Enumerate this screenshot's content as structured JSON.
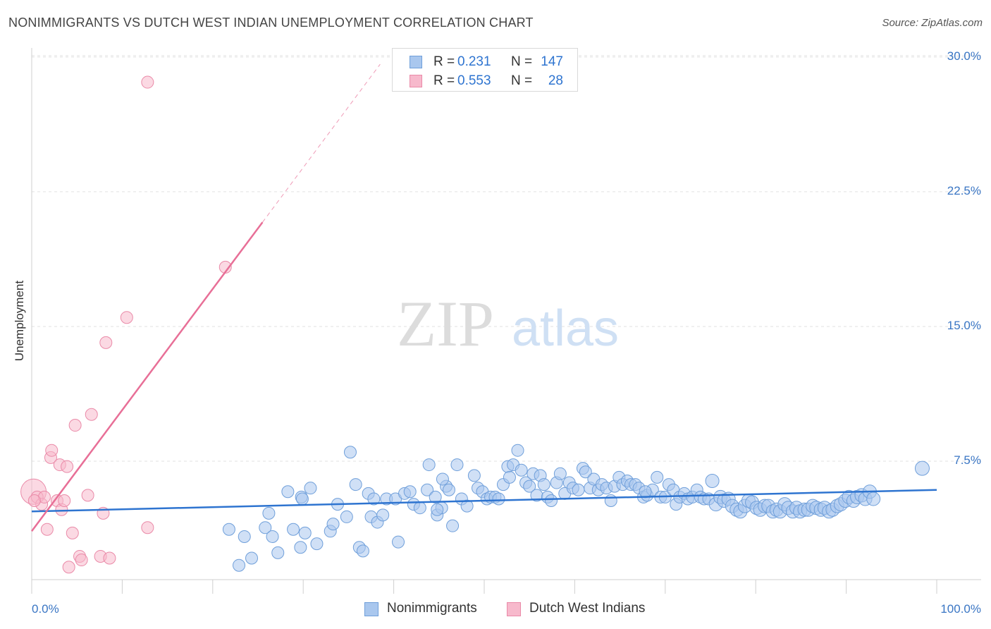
{
  "header": {
    "title": "NONIMMIGRANTS VS DUTCH WEST INDIAN UNEMPLOYMENT CORRELATION CHART",
    "source": "Source: ZipAtlas.com"
  },
  "watermark": {
    "zip": "ZIP",
    "atlas": "atlas"
  },
  "legend_top": [
    {
      "r_label": "R =",
      "r_value": "0.231",
      "n_label": "N =",
      "n_value": "147"
    },
    {
      "r_label": "R =",
      "r_value": "0.553",
      "n_label": "N =",
      "n_value": "28"
    }
  ],
  "legend_bottom": [
    {
      "label": "Nonimmigrants"
    },
    {
      "label": "Dutch West Indians"
    }
  ],
  "colors": {
    "blue_fill": "#a9c7ee",
    "blue_stroke": "#6f9fda",
    "blue_line": "#2e74d0",
    "pink_fill": "#f7b9cc",
    "pink_stroke": "#ea8aa8",
    "pink_line": "#e86f97",
    "axis_text": "#3a76c4",
    "grid": "#e2e2e2"
  },
  "chart_data": {
    "type": "scatter",
    "title": "NONIMMIGRANTS VS DUTCH WEST INDIAN UNEMPLOYMENT CORRELATION CHART",
    "xlabel": "",
    "ylabel": "Unemployment",
    "xlim": [
      0,
      100
    ],
    "ylim": [
      0,
      31
    ],
    "x_tick_labels": [
      "0.0%",
      "100.0%"
    ],
    "y_ticks": [
      7.5,
      15.0,
      22.5,
      30.0
    ],
    "y_tick_labels": [
      "7.5%",
      "15.0%",
      "22.5%",
      "30.0%"
    ],
    "grid": true,
    "legend": "top-center",
    "series": [
      {
        "name": "Nonimmigrants",
        "r": 0.231,
        "n": 147,
        "trend": {
          "x": [
            0,
            100
          ],
          "y": [
            4.7,
            5.9
          ],
          "dashed_extension": false
        },
        "points": [
          [
            21.8,
            3.7
          ],
          [
            22.9,
            1.7
          ],
          [
            23.5,
            3.3
          ],
          [
            24.3,
            2.1
          ],
          [
            25.8,
            3.8
          ],
          [
            26.2,
            4.6
          ],
          [
            26.6,
            3.3
          ],
          [
            27.2,
            2.4
          ],
          [
            28.3,
            5.8
          ],
          [
            28.9,
            3.7
          ],
          [
            29.7,
            2.7
          ],
          [
            29.8,
            5.5
          ],
          [
            30.2,
            3.5
          ],
          [
            30.8,
            6.0
          ],
          [
            31.5,
            2.9
          ],
          [
            33.0,
            3.6
          ],
          [
            33.8,
            5.1
          ],
          [
            34.8,
            4.4
          ],
          [
            35.2,
            8.0
          ],
          [
            35.8,
            6.2
          ],
          [
            36.2,
            2.7
          ],
          [
            36.6,
            2.5
          ],
          [
            37.2,
            5.7
          ],
          [
            37.8,
            5.4
          ],
          [
            37.5,
            4.4
          ],
          [
            38.2,
            4.1
          ],
          [
            38.8,
            4.5
          ],
          [
            39.2,
            5.4
          ],
          [
            40.2,
            5.4
          ],
          [
            40.5,
            3.0
          ],
          [
            41.2,
            5.7
          ],
          [
            41.8,
            5.8
          ],
          [
            42.2,
            5.1
          ],
          [
            42.9,
            4.9
          ],
          [
            43.7,
            5.9
          ],
          [
            43.9,
            7.3
          ],
          [
            44.6,
            5.5
          ],
          [
            44.8,
            4.5
          ],
          [
            45.3,
            4.9
          ],
          [
            45.8,
            6.1
          ],
          [
            46.1,
            5.9
          ],
          [
            46.5,
            3.9
          ],
          [
            47.0,
            7.3
          ],
          [
            47.5,
            5.4
          ],
          [
            48.1,
            5.0
          ],
          [
            48.9,
            6.7
          ],
          [
            49.3,
            6.0
          ],
          [
            49.8,
            5.8
          ],
          [
            50.3,
            5.4
          ],
          [
            50.7,
            5.5
          ],
          [
            51.2,
            5.5
          ],
          [
            51.6,
            5.4
          ],
          [
            52.1,
            6.2
          ],
          [
            52.6,
            7.2
          ],
          [
            52.8,
            6.6
          ],
          [
            53.2,
            7.3
          ],
          [
            53.7,
            8.1
          ],
          [
            54.1,
            7.0
          ],
          [
            54.6,
            6.3
          ],
          [
            55.0,
            6.1
          ],
          [
            55.4,
            6.8
          ],
          [
            55.8,
            5.6
          ],
          [
            56.2,
            6.7
          ],
          [
            56.6,
            6.2
          ],
          [
            57.0,
            5.5
          ],
          [
            57.4,
            5.3
          ],
          [
            58.0,
            6.3
          ],
          [
            58.4,
            6.8
          ],
          [
            58.9,
            5.7
          ],
          [
            59.4,
            6.3
          ],
          [
            59.8,
            6.0
          ],
          [
            60.4,
            5.9
          ],
          [
            60.9,
            7.1
          ],
          [
            61.2,
            6.9
          ],
          [
            61.7,
            6.0
          ],
          [
            62.1,
            6.5
          ],
          [
            62.6,
            5.9
          ],
          [
            63.0,
            6.2
          ],
          [
            63.5,
            6.0
          ],
          [
            64.0,
            5.3
          ],
          [
            64.4,
            6.1
          ],
          [
            64.9,
            6.6
          ],
          [
            65.3,
            6.2
          ],
          [
            65.8,
            6.4
          ],
          [
            66.2,
            6.2
          ],
          [
            66.7,
            6.2
          ],
          [
            67.1,
            6.0
          ],
          [
            67.6,
            5.5
          ],
          [
            68.0,
            5.6
          ],
          [
            68.6,
            5.9
          ],
          [
            69.1,
            6.6
          ],
          [
            69.5,
            5.5
          ],
          [
            70.0,
            5.5
          ],
          [
            70.4,
            6.2
          ],
          [
            70.9,
            5.9
          ],
          [
            71.2,
            5.1
          ],
          [
            71.6,
            5.5
          ],
          [
            72.1,
            5.7
          ],
          [
            72.5,
            5.4
          ],
          [
            73.0,
            5.5
          ],
          [
            73.5,
            5.9
          ],
          [
            73.9,
            5.5
          ],
          [
            74.3,
            5.4
          ],
          [
            74.8,
            5.4
          ],
          [
            75.2,
            6.4
          ],
          [
            75.6,
            5.1
          ],
          [
            76.1,
            5.5
          ],
          [
            76.5,
            5.3
          ],
          [
            77.0,
            5.4
          ],
          [
            77.4,
            5.0
          ],
          [
            77.9,
            4.8
          ],
          [
            78.3,
            4.7
          ],
          [
            78.8,
            5.0
          ],
          [
            79.2,
            5.3
          ],
          [
            79.6,
            5.2
          ],
          [
            80.1,
            4.9
          ],
          [
            80.5,
            4.8
          ],
          [
            81.0,
            5.0
          ],
          [
            81.4,
            5.0
          ],
          [
            81.9,
            4.7
          ],
          [
            82.3,
            4.8
          ],
          [
            82.7,
            4.7
          ],
          [
            83.2,
            5.1
          ],
          [
            83.6,
            4.9
          ],
          [
            84.1,
            4.7
          ],
          [
            84.5,
            4.9
          ],
          [
            84.9,
            4.7
          ],
          [
            85.4,
            4.8
          ],
          [
            85.8,
            4.8
          ],
          [
            86.3,
            5.0
          ],
          [
            86.7,
            4.9
          ],
          [
            87.2,
            4.8
          ],
          [
            87.6,
            4.9
          ],
          [
            88.1,
            4.7
          ],
          [
            88.5,
            4.8
          ],
          [
            89.0,
            5.0
          ],
          [
            89.4,
            5.1
          ],
          [
            89.9,
            5.3
          ],
          [
            90.3,
            5.5
          ],
          [
            90.8,
            5.3
          ],
          [
            91.2,
            5.5
          ],
          [
            91.7,
            5.6
          ],
          [
            92.1,
            5.4
          ],
          [
            92.6,
            5.8
          ],
          [
            93.0,
            5.4
          ],
          [
            98.4,
            7.1
          ],
          [
            29.9,
            5.4
          ],
          [
            33.3,
            4.0
          ],
          [
            45.4,
            6.5
          ],
          [
            44.8,
            4.8
          ],
          [
            67.8,
            5.8
          ]
        ]
      },
      {
        "name": "Dutch West Indians",
        "r": 0.553,
        "n": 28,
        "trend": {
          "x": [
            0,
            25.5
          ],
          "y": [
            3.6,
            20.8
          ],
          "dashed_to": [
            38.5,
            29.6
          ]
        },
        "points": [
          [
            0.2,
            5.8
          ],
          [
            0.6,
            5.5
          ],
          [
            1.1,
            5.1
          ],
          [
            1.4,
            5.5
          ],
          [
            1.7,
            3.7
          ],
          [
            2.1,
            7.7
          ],
          [
            2.2,
            8.1
          ],
          [
            2.8,
            5.3
          ],
          [
            3.1,
            7.3
          ],
          [
            3.3,
            4.8
          ],
          [
            3.6,
            5.3
          ],
          [
            3.9,
            7.2
          ],
          [
            4.1,
            1.6
          ],
          [
            4.5,
            3.5
          ],
          [
            4.8,
            9.5
          ],
          [
            5.3,
            2.2
          ],
          [
            5.5,
            2.0
          ],
          [
            6.2,
            5.6
          ],
          [
            6.6,
            10.1
          ],
          [
            7.6,
            2.2
          ],
          [
            7.9,
            4.6
          ],
          [
            8.2,
            14.1
          ],
          [
            8.6,
            2.1
          ],
          [
            10.5,
            15.5
          ],
          [
            12.8,
            3.8
          ],
          [
            12.8,
            28.6
          ],
          [
            21.4,
            18.3
          ],
          [
            0.3,
            5.3
          ]
        ]
      }
    ]
  }
}
